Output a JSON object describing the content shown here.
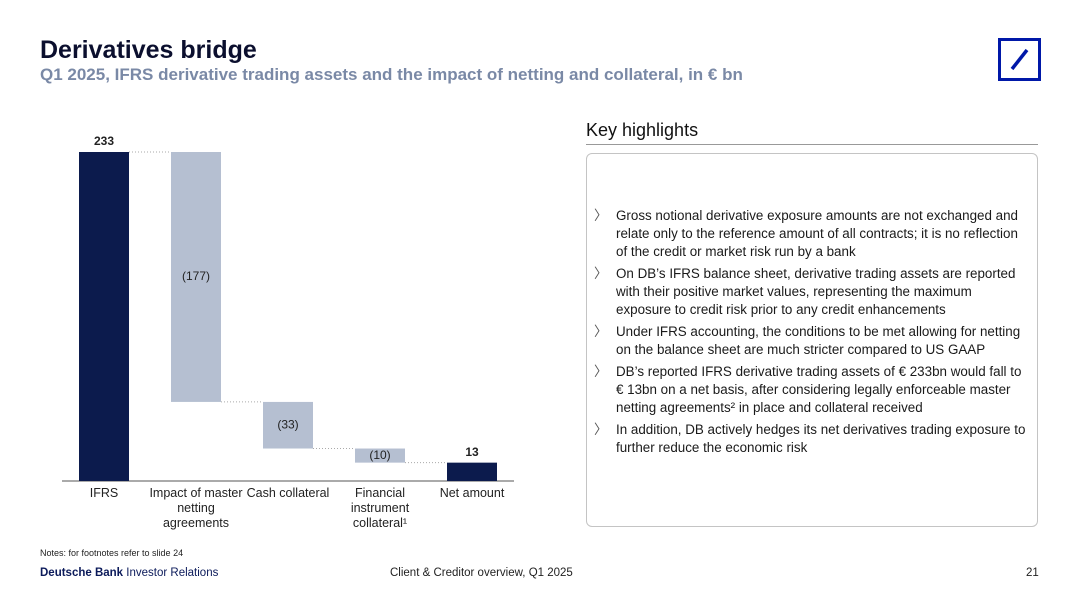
{
  "header": {
    "title": "Derivatives bridge",
    "subtitle": "Q1 2025, IFRS derivative trading assets and the impact of netting and collateral, in € bn"
  },
  "chart_data": {
    "type": "waterfall",
    "categories": [
      "IFRS",
      "Impact of master netting agreements",
      "Cash collateral",
      "Financial instrument collateral¹",
      "Net amount"
    ],
    "values": [
      233,
      -177,
      -33,
      -10,
      13
    ],
    "value_labels": [
      "233",
      "(177)",
      "(33)",
      "(10)",
      "13"
    ],
    "measure": [
      "absolute",
      "relative",
      "relative",
      "relative",
      "total"
    ],
    "colors": {
      "total": "#0c1b4d",
      "relative": "#b5bfd1"
    }
  },
  "highlights": {
    "title": "Key highlights",
    "items": [
      "Gross notional derivative exposure amounts are not exchanged and relate only to the reference amount of all contracts; it is no reflection of the credit or market risk run by a bank",
      "On DB’s IFRS balance sheet, derivative trading assets are reported with their positive market values, representing the maximum exposure to credit risk prior to any credit enhancements",
      "Under IFRS accounting, the conditions to be met allowing for netting on the balance sheet are much stricter compared to US GAAP",
      "DB’s reported IFRS derivative trading assets of € 233bn would fall to € 13bn on a net basis, after considering legally enforceable master netting agreements² in place and collateral received",
      "In addition, DB actively hedges its net derivatives trading exposure to further reduce the economic risk"
    ]
  },
  "footer": {
    "notes": "Notes: for footnotes refer to slide 24",
    "brand": "Deutsche Bank",
    "unit": "Investor Relations",
    "center": "Client & Creditor overview, Q1 2025",
    "page": "21"
  }
}
